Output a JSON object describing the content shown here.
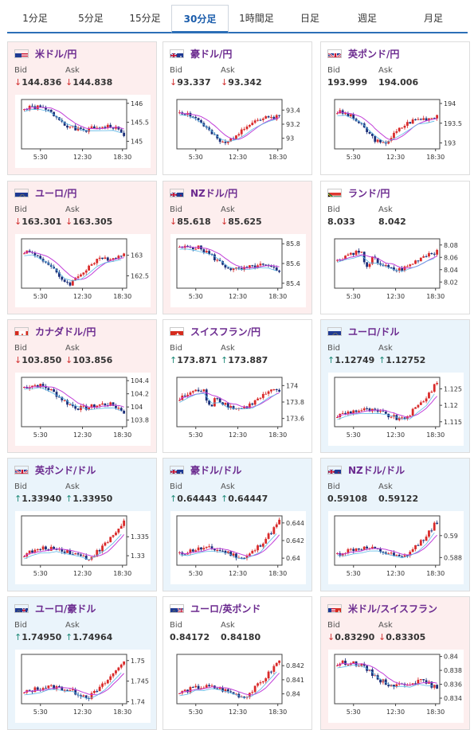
{
  "tabs": [
    {
      "label": "1分足",
      "active": false
    },
    {
      "label": "5分足",
      "active": false
    },
    {
      "label": "15分足",
      "active": false
    },
    {
      "label": "30分足",
      "active": true
    },
    {
      "label": "1時間足",
      "active": false
    },
    {
      "label": "日足",
      "active": false
    },
    {
      "label": "週足",
      "active": false
    },
    {
      "label": "月足",
      "active": false
    }
  ],
  "labels": {
    "bid": "Bid",
    "ask": "Ask"
  },
  "x_ticks": [
    "5:30",
    "12:30",
    "18:30"
  ],
  "colors": {
    "up": "#d92a2a",
    "down": "#1c2f7a",
    "ma": "#c23fd8",
    "price_up": "#1f8a78",
    "price_down": "#d23232",
    "pair_text": "#6b2a8f"
  },
  "cards": [
    {
      "pair": "米ドル/円",
      "flag": "us-flag",
      "bg": "jpy",
      "bid": "144.836",
      "ask": "144.838",
      "dir": "down",
      "ylim": [
        144.8,
        146.1
      ],
      "yticks": [
        "146",
        "145.5",
        "145"
      ],
      "seed": 1,
      "trend": "down"
    },
    {
      "pair": "豪ドル/円",
      "flag": "au-flag",
      "bg": "white",
      "bid": "93.337",
      "ask": "93.342",
      "dir": "down",
      "ylim": [
        92.85,
        93.55
      ],
      "yticks": [
        "93.4",
        "93.2",
        "93"
      ],
      "seed": 2,
      "trend": "vshape"
    },
    {
      "pair": "英ポンド/円",
      "flag": "uk-flag",
      "bg": "white",
      "bid": "193.999",
      "ask": "194.006",
      "dir": "",
      "ylim": [
        192.85,
        194.1
      ],
      "yticks": [
        "194",
        "193.5",
        "193"
      ],
      "seed": 3,
      "trend": "vshape"
    },
    {
      "pair": "ユーロ/円",
      "flag": "eu-flag",
      "bg": "jpy",
      "bid": "163.301",
      "ask": "163.305",
      "dir": "down",
      "ylim": [
        162.2,
        163.4
      ],
      "yticks": [
        "163",
        "162.5"
      ],
      "seed": 4,
      "trend": "vshape"
    },
    {
      "pair": "NZドル/円",
      "flag": "nz-flag",
      "bg": "jpy",
      "bid": "85.618",
      "ask": "85.625",
      "dir": "down",
      "ylim": [
        85.35,
        85.85
      ],
      "yticks": [
        "85.8",
        "85.6",
        "85.4"
      ],
      "seed": 5,
      "trend": "down"
    },
    {
      "pair": "ランド/円",
      "flag": "za-flag",
      "bg": "white",
      "bid": "8.033",
      "ask": "8.042",
      "dir": "",
      "ylim": [
        8.01,
        8.09
      ],
      "yticks": [
        "8.08",
        "8.06",
        "8.04",
        "8.02"
      ],
      "seed": 6,
      "trend": "flat"
    },
    {
      "pair": "カナダドル/円",
      "flag": "ca-flag",
      "bg": "jpy",
      "bid": "103.850",
      "ask": "103.856",
      "dir": "down",
      "ylim": [
        103.7,
        104.45
      ],
      "yticks": [
        "104.4",
        "104.2",
        "104",
        "103.8"
      ],
      "seed": 7,
      "trend": "down"
    },
    {
      "pair": "スイスフラン/円",
      "flag": "ch-flag",
      "bg": "white",
      "bid": "173.871",
      "ask": "173.887",
      "dir": "up",
      "ylim": [
        173.5,
        174.1
      ],
      "yticks": [
        "174",
        "173.8",
        "173.6"
      ],
      "seed": 8,
      "trend": "flat"
    },
    {
      "pair": "ユーロ/ドル",
      "flag": "eu-flag",
      "bg": "usd",
      "bid": "1.12749",
      "ask": "1.12752",
      "dir": "up",
      "ylim": [
        1.1135,
        1.1285
      ],
      "yticks": [
        "1.125",
        "1.12",
        "1.115"
      ],
      "seed": 9,
      "trend": "up"
    },
    {
      "pair": "英ポンド/ドル",
      "flag": "uk-flag",
      "bg": "usd",
      "bid": "1.33940",
      "ask": "1.33950",
      "dir": "up",
      "ylim": [
        1.3275,
        1.3405
      ],
      "yticks": [
        "1.335",
        "1.33"
      ],
      "seed": 10,
      "trend": "up"
    },
    {
      "pair": "豪ドル/ドル",
      "flag": "au-flag",
      "bg": "usd",
      "bid": "0.64443",
      "ask": "0.64447",
      "dir": "up",
      "ylim": [
        0.6392,
        0.6448
      ],
      "yticks": [
        "0.644",
        "0.642",
        "0.64"
      ],
      "seed": 11,
      "trend": "up"
    },
    {
      "pair": "NZドル/ドル",
      "flag": "nz-flag",
      "bg": "usd",
      "bid": "0.59108",
      "ask": "0.59122",
      "dir": "",
      "ylim": [
        0.5873,
        0.5918
      ],
      "yticks": [
        "0.59",
        "0.588"
      ],
      "seed": 12,
      "trend": "up"
    },
    {
      "pair": "ユーロ/豪ドル",
      "flag": "eu-au-flag",
      "bg": "usd",
      "bid": "1.74950",
      "ask": "1.74964",
      "dir": "up",
      "ylim": [
        1.7395,
        1.7515
      ],
      "yticks": [
        "1.75",
        "1.745",
        "1.74"
      ],
      "seed": 13,
      "trend": "up"
    },
    {
      "pair": "ユーロ/英ポンド",
      "flag": "eu-uk-flag",
      "bg": "white",
      "bid": "0.84172",
      "ask": "0.84180",
      "dir": "",
      "ylim": [
        0.8393,
        0.8428
      ],
      "yticks": [
        "0.842",
        "0.841",
        "0.84"
      ],
      "seed": 14,
      "trend": "up"
    },
    {
      "pair": "米ドル/スイスフラン",
      "flag": "us-ch-flag",
      "bg": "jpy",
      "bid": "0.83290",
      "ask": "0.83305",
      "dir": "down",
      "ylim": [
        0.8332,
        0.8403
      ],
      "yticks": [
        "0.84",
        "0.838",
        "0.836",
        "0.834"
      ],
      "seed": 15,
      "trend": "down"
    }
  ]
}
